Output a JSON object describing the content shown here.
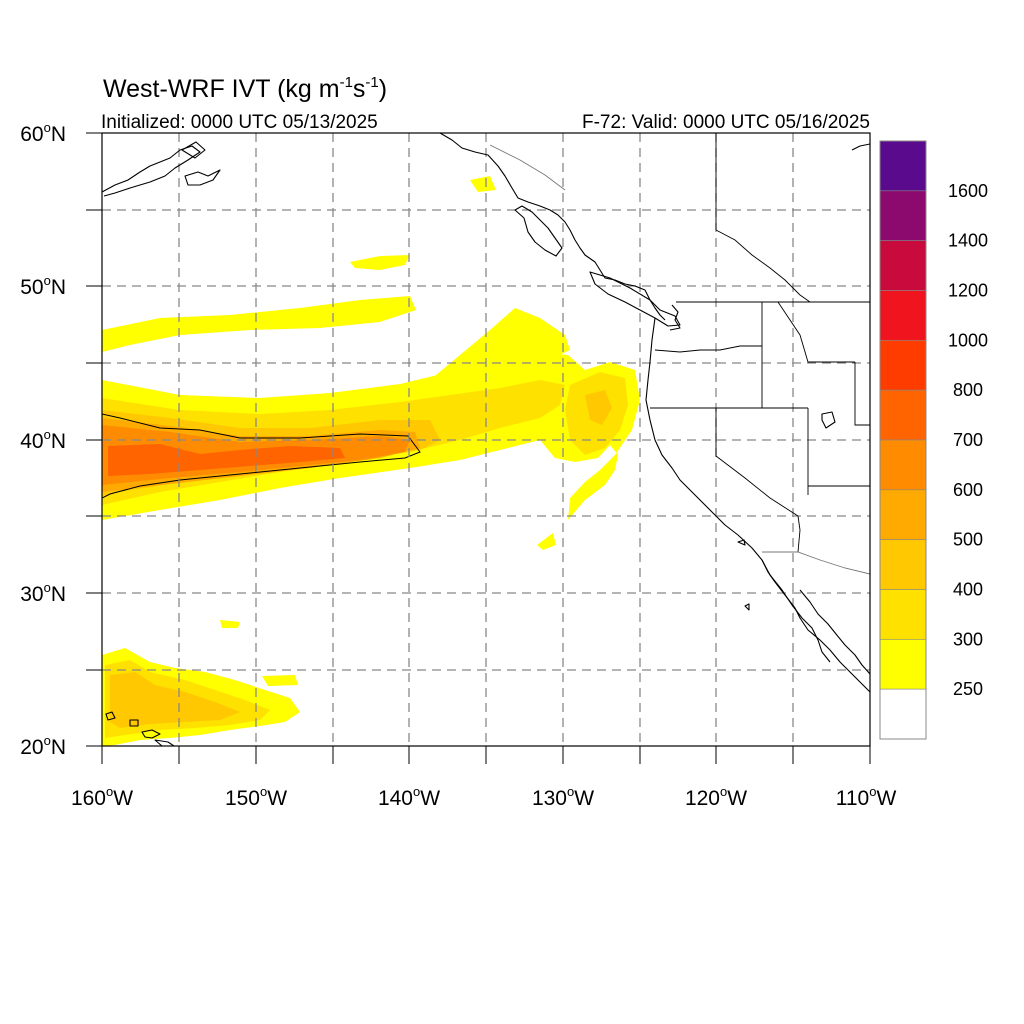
{
  "title": {
    "main_prefix": "West-WRF IVT (kg m",
    "exp1": "-1",
    "mid": "s",
    "exp2": "-1",
    "suffix": ")"
  },
  "subtitle_left": "Initialized: 0000 UTC 05/13/2025",
  "subtitle_right": "F-72: Valid: 0000 UTC 05/16/2025",
  "lat_labels": [
    {
      "deg": "60",
      "unit": "o",
      "hemi": "N"
    },
    {
      "deg": "50",
      "unit": "o",
      "hemi": "N"
    },
    {
      "deg": "40",
      "unit": "o",
      "hemi": "N"
    },
    {
      "deg": "30",
      "unit": "o",
      "hemi": "N"
    },
    {
      "deg": "20",
      "unit": "o",
      "hemi": "N"
    }
  ],
  "lon_labels": [
    {
      "deg": "160",
      "unit": "o",
      "hemi": "W"
    },
    {
      "deg": "150",
      "unit": "o",
      "hemi": "W"
    },
    {
      "deg": "140",
      "unit": "o",
      "hemi": "W"
    },
    {
      "deg": "130",
      "unit": "o",
      "hemi": "W"
    },
    {
      "deg": "120",
      "unit": "o",
      "hemi": "W"
    },
    {
      "deg": "110",
      "unit": "o",
      "hemi": "W"
    }
  ],
  "colorbar": {
    "labels": [
      "1600",
      "1400",
      "1200",
      "1000",
      "800",
      "700",
      "600",
      "500",
      "400",
      "300",
      "250"
    ],
    "colors_top_to_bottom": [
      "#5a0a8c",
      "#8c0a6e",
      "#c80a3c",
      "#f0141e",
      "#ff3c00",
      "#ff6400",
      "#ff8c00",
      "#ffaa00",
      "#ffc800",
      "#ffe100",
      "#ffff00",
      "#ffffff"
    ]
  },
  "map": {
    "extent": {
      "lon_min": -160,
      "lon_max": -110,
      "lat_min": 20,
      "lat_max": 60
    },
    "field": "IVT",
    "contour_level": 600,
    "colors": {
      "c250": "#ffff00",
      "c300": "#ffe100",
      "c400": "#ffc800",
      "c500": "#ffaa00",
      "c600": "#ff8c00",
      "c700": "#ff6400"
    }
  }
}
